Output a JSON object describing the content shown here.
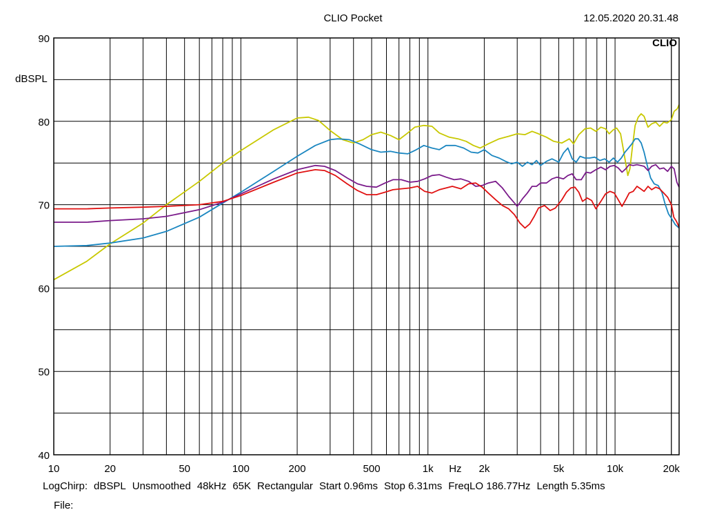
{
  "header": {
    "title": "CLIO Pocket",
    "timestamp": "12.05.2020 20.31.48",
    "logo": "CLIO"
  },
  "footer": {
    "params": [
      "LogChirp:",
      "dBSPL",
      "Unsmoothed",
      "48kHz",
      "65K",
      "Rectangular",
      "Start 0.96ms",
      "Stop 6.31ms",
      "FreqLO 186.77Hz",
      "Length 5.35ms"
    ],
    "file_label": "File:"
  },
  "chart_data": {
    "type": "line",
    "title": "CLIO Pocket",
    "ylabel": "dBSPL",
    "xlabel": "Hz",
    "x_scale": "log",
    "xlim": [
      10,
      22000
    ],
    "ylim": [
      40,
      90
    ],
    "grid": true,
    "x_ticks": [
      {
        "value": 10,
        "label": "10"
      },
      {
        "value": 20,
        "label": "20"
      },
      {
        "value": 50,
        "label": "50"
      },
      {
        "value": 100,
        "label": "100"
      },
      {
        "value": 200,
        "label": "200"
      },
      {
        "value": 500,
        "label": "500"
      },
      {
        "value": 1000,
        "label": "1k"
      },
      {
        "value": 2000,
        "label": "2k"
      },
      {
        "value": 5000,
        "label": "5k"
      },
      {
        "value": 10000,
        "label": "10k"
      },
      {
        "value": 20000,
        "label": "20k"
      }
    ],
    "x_unit_label": {
      "value": 1400,
      "label": "Hz"
    },
    "y_ticks": [
      {
        "value": 90,
        "label": "90"
      },
      {
        "value": 80,
        "label": "80"
      },
      {
        "value": 70,
        "label": "70"
      },
      {
        "value": 60,
        "label": "60"
      },
      {
        "value": 50,
        "label": "50"
      },
      {
        "value": 40,
        "label": "40"
      }
    ],
    "series": [
      {
        "color": "#c8c800",
        "points": [
          [
            10,
            61
          ],
          [
            15,
            63.2
          ],
          [
            20,
            65.3
          ],
          [
            30,
            67.8
          ],
          [
            40,
            70
          ],
          [
            60,
            72.8
          ],
          [
            80,
            75
          ],
          [
            100,
            76.5
          ],
          [
            150,
            79
          ],
          [
            200,
            80.4
          ],
          [
            230,
            80.5
          ],
          [
            260,
            80.1
          ],
          [
            300,
            78.9
          ],
          [
            350,
            77.8
          ],
          [
            400,
            77.4
          ],
          [
            450,
            77.8
          ],
          [
            500,
            78.4
          ],
          [
            560,
            78.7
          ],
          [
            630,
            78.3
          ],
          [
            700,
            77.8
          ],
          [
            780,
            78.6
          ],
          [
            850,
            79.3
          ],
          [
            950,
            79.5
          ],
          [
            1050,
            79.4
          ],
          [
            1150,
            78.6
          ],
          [
            1300,
            78.1
          ],
          [
            1450,
            77.9
          ],
          [
            1600,
            77.6
          ],
          [
            1750,
            77.1
          ],
          [
            1900,
            76.8
          ],
          [
            2100,
            77.3
          ],
          [
            2400,
            77.9
          ],
          [
            2700,
            78.2
          ],
          [
            3000,
            78.5
          ],
          [
            3300,
            78.4
          ],
          [
            3600,
            78.8
          ],
          [
            3900,
            78.5
          ],
          [
            4300,
            78.1
          ],
          [
            4700,
            77.6
          ],
          [
            5200,
            77.4
          ],
          [
            5700,
            77.9
          ],
          [
            6000,
            77.3
          ],
          [
            6400,
            78.4
          ],
          [
            6900,
            79.1
          ],
          [
            7400,
            79.2
          ],
          [
            7900,
            78.8
          ],
          [
            8400,
            79.3
          ],
          [
            8900,
            79.1
          ],
          [
            9300,
            78.5
          ],
          [
            9800,
            79
          ],
          [
            10200,
            79.2
          ],
          [
            10700,
            78.5
          ],
          [
            11100,
            76.5
          ],
          [
            11400,
            75
          ],
          [
            11700,
            73.5
          ],
          [
            12000,
            74.3
          ],
          [
            12400,
            77
          ],
          [
            12800,
            79.5
          ],
          [
            13300,
            80.5
          ],
          [
            13800,
            80.9
          ],
          [
            14300,
            80.6
          ],
          [
            15000,
            79.3
          ],
          [
            15700,
            79.7
          ],
          [
            16500,
            79.9
          ],
          [
            17300,
            79.4
          ],
          [
            18200,
            79.9
          ],
          [
            19000,
            79.8
          ],
          [
            20000,
            80.2
          ],
          [
            20700,
            81.2
          ],
          [
            21500,
            81.5
          ],
          [
            22000,
            82
          ]
        ]
      },
      {
        "color": "#1a86c0",
        "points": [
          [
            10,
            65
          ],
          [
            15,
            65.1
          ],
          [
            20,
            65.4
          ],
          [
            30,
            66
          ],
          [
            40,
            66.8
          ],
          [
            60,
            68.5
          ],
          [
            80,
            70.2
          ],
          [
            100,
            71.5
          ],
          [
            150,
            74
          ],
          [
            200,
            75.8
          ],
          [
            250,
            77.1
          ],
          [
            300,
            77.8
          ],
          [
            330,
            77.9
          ],
          [
            380,
            77.8
          ],
          [
            430,
            77.3
          ],
          [
            500,
            76.6
          ],
          [
            560,
            76.3
          ],
          [
            630,
            76.4
          ],
          [
            700,
            76.2
          ],
          [
            780,
            76.1
          ],
          [
            850,
            76.5
          ],
          [
            950,
            77.1
          ],
          [
            1050,
            76.8
          ],
          [
            1150,
            76.6
          ],
          [
            1250,
            77.1
          ],
          [
            1400,
            77.1
          ],
          [
            1550,
            76.8
          ],
          [
            1700,
            76.3
          ],
          [
            1850,
            76.2
          ],
          [
            2000,
            76.6
          ],
          [
            2200,
            75.9
          ],
          [
            2400,
            75.6
          ],
          [
            2600,
            75.2
          ],
          [
            2800,
            74.9
          ],
          [
            3000,
            75.1
          ],
          [
            3200,
            74.6
          ],
          [
            3400,
            75.1
          ],
          [
            3600,
            74.8
          ],
          [
            3800,
            75.3
          ],
          [
            4000,
            74.7
          ],
          [
            4300,
            75.2
          ],
          [
            4600,
            75.5
          ],
          [
            5000,
            75.1
          ],
          [
            5300,
            76.2
          ],
          [
            5600,
            76.8
          ],
          [
            5900,
            75.5
          ],
          [
            6200,
            75.1
          ],
          [
            6500,
            75.8
          ],
          [
            6900,
            75.6
          ],
          [
            7300,
            75.6
          ],
          [
            7800,
            75.7
          ],
          [
            8300,
            75.3
          ],
          [
            8800,
            75.5
          ],
          [
            9300,
            75.1
          ],
          [
            9800,
            75.6
          ],
          [
            10300,
            75.1
          ],
          [
            10800,
            75.6
          ],
          [
            11300,
            76.3
          ],
          [
            11800,
            76.8
          ],
          [
            12300,
            77.3
          ],
          [
            12800,
            77.9
          ],
          [
            13300,
            77.9
          ],
          [
            13800,
            77.4
          ],
          [
            14300,
            76.3
          ],
          [
            14900,
            74.6
          ],
          [
            15500,
            73.2
          ],
          [
            16200,
            72.5
          ],
          [
            17000,
            72.3
          ],
          [
            17800,
            71.5
          ],
          [
            18500,
            70.1
          ],
          [
            19300,
            68.9
          ],
          [
            20100,
            68.3
          ],
          [
            21000,
            67.6
          ],
          [
            22000,
            67.2
          ]
        ]
      },
      {
        "color": "#7a1a8a",
        "points": [
          [
            10,
            67.9
          ],
          [
            15,
            67.9
          ],
          [
            20,
            68.1
          ],
          [
            30,
            68.3
          ],
          [
            40,
            68.6
          ],
          [
            60,
            69.4
          ],
          [
            80,
            70.3
          ],
          [
            100,
            71.3
          ],
          [
            150,
            73.1
          ],
          [
            200,
            74.2
          ],
          [
            250,
            74.7
          ],
          [
            280,
            74.6
          ],
          [
            320,
            74.1
          ],
          [
            370,
            73.2
          ],
          [
            420,
            72.5
          ],
          [
            470,
            72.2
          ],
          [
            530,
            72.1
          ],
          [
            590,
            72.6
          ],
          [
            650,
            73
          ],
          [
            720,
            73
          ],
          [
            800,
            72.7
          ],
          [
            880,
            72.8
          ],
          [
            960,
            73.1
          ],
          [
            1050,
            73.5
          ],
          [
            1150,
            73.6
          ],
          [
            1250,
            73.3
          ],
          [
            1380,
            73
          ],
          [
            1500,
            73.1
          ],
          [
            1650,
            72.8
          ],
          [
            1800,
            72.2
          ],
          [
            1950,
            72.3
          ],
          [
            2100,
            72.6
          ],
          [
            2300,
            72.8
          ],
          [
            2500,
            72
          ],
          [
            2700,
            71
          ],
          [
            2900,
            70.2
          ],
          [
            3000,
            69.8
          ],
          [
            3200,
            70.7
          ],
          [
            3400,
            71.4
          ],
          [
            3600,
            72.2
          ],
          [
            3800,
            72.2
          ],
          [
            4000,
            72.6
          ],
          [
            4300,
            72.6
          ],
          [
            4600,
            73.1
          ],
          [
            4900,
            73.3
          ],
          [
            5300,
            73.1
          ],
          [
            5600,
            73.5
          ],
          [
            5900,
            73.7
          ],
          [
            6200,
            73
          ],
          [
            6600,
            73
          ],
          [
            7000,
            73.9
          ],
          [
            7400,
            73.8
          ],
          [
            7900,
            74.2
          ],
          [
            8400,
            74.5
          ],
          [
            8900,
            74.2
          ],
          [
            9400,
            74.6
          ],
          [
            9900,
            74.7
          ],
          [
            10400,
            74.4
          ],
          [
            10900,
            73.9
          ],
          [
            11400,
            74.3
          ],
          [
            11900,
            74.8
          ],
          [
            12500,
            74.7
          ],
          [
            13100,
            74.8
          ],
          [
            13700,
            74.7
          ],
          [
            14300,
            74.6
          ],
          [
            15000,
            74.1
          ],
          [
            15700,
            74.6
          ],
          [
            16500,
            74.8
          ],
          [
            17300,
            74.3
          ],
          [
            18200,
            74.4
          ],
          [
            19100,
            74
          ],
          [
            20000,
            74.6
          ],
          [
            20700,
            74.3
          ],
          [
            21400,
            72.7
          ],
          [
            22000,
            72.1
          ]
        ]
      },
      {
        "color": "#e01010",
        "points": [
          [
            10,
            69.5
          ],
          [
            15,
            69.5
          ],
          [
            20,
            69.6
          ],
          [
            30,
            69.7
          ],
          [
            40,
            69.8
          ],
          [
            60,
            70
          ],
          [
            80,
            70.4
          ],
          [
            100,
            71.1
          ],
          [
            150,
            72.7
          ],
          [
            200,
            73.8
          ],
          [
            250,
            74.2
          ],
          [
            280,
            74.1
          ],
          [
            320,
            73.5
          ],
          [
            370,
            72.5
          ],
          [
            420,
            71.7
          ],
          [
            470,
            71.2
          ],
          [
            530,
            71.2
          ],
          [
            590,
            71.5
          ],
          [
            650,
            71.8
          ],
          [
            720,
            71.9
          ],
          [
            800,
            72
          ],
          [
            880,
            72.2
          ],
          [
            960,
            71.6
          ],
          [
            1050,
            71.4
          ],
          [
            1150,
            71.8
          ],
          [
            1250,
            72
          ],
          [
            1350,
            72.2
          ],
          [
            1500,
            71.9
          ],
          [
            1650,
            72.5
          ],
          [
            1800,
            72.6
          ],
          [
            1950,
            72.1
          ],
          [
            2100,
            71.4
          ],
          [
            2300,
            70.6
          ],
          [
            2500,
            69.9
          ],
          [
            2700,
            69.5
          ],
          [
            2900,
            68.8
          ],
          [
            3100,
            67.8
          ],
          [
            3300,
            67.2
          ],
          [
            3500,
            67.7
          ],
          [
            3700,
            68.6
          ],
          [
            3900,
            69.6
          ],
          [
            4200,
            69.9
          ],
          [
            4500,
            69.3
          ],
          [
            4800,
            69.6
          ],
          [
            5200,
            70.6
          ],
          [
            5500,
            71.5
          ],
          [
            5800,
            72
          ],
          [
            6100,
            72.1
          ],
          [
            6400,
            71.5
          ],
          [
            6700,
            70.4
          ],
          [
            7100,
            70.8
          ],
          [
            7500,
            70.5
          ],
          [
            7900,
            69.5
          ],
          [
            8400,
            70.4
          ],
          [
            8900,
            71.3
          ],
          [
            9400,
            71.6
          ],
          [
            9900,
            71.4
          ],
          [
            10400,
            70.6
          ],
          [
            10900,
            69.8
          ],
          [
            11400,
            70.6
          ],
          [
            11900,
            71.4
          ],
          [
            12500,
            71.6
          ],
          [
            13100,
            72.2
          ],
          [
            13700,
            71.9
          ],
          [
            14300,
            71.6
          ],
          [
            15000,
            72.2
          ],
          [
            15700,
            71.8
          ],
          [
            16500,
            72.1
          ],
          [
            17300,
            71.9
          ],
          [
            18200,
            71.4
          ],
          [
            19100,
            70.9
          ],
          [
            20000,
            70
          ],
          [
            20600,
            68.5
          ],
          [
            21300,
            68
          ],
          [
            22000,
            67.3
          ]
        ]
      }
    ]
  }
}
